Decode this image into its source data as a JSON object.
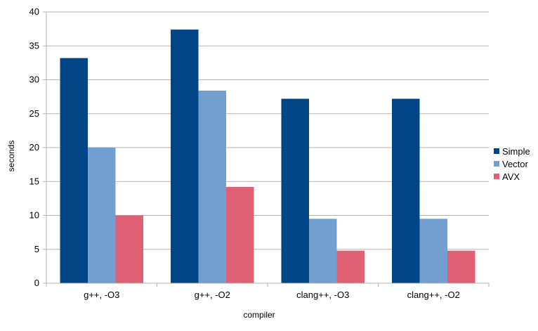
{
  "chart_data": {
    "type": "bar",
    "categories": [
      "g++, -O3",
      "g++, -O2",
      "clang++, -O3",
      "clang++, -O2"
    ],
    "series": [
      {
        "name": "Simple",
        "color": "#004586",
        "values": [
          33.2,
          37.4,
          27.2,
          27.2
        ]
      },
      {
        "name": "Vector",
        "color": "#729fcf",
        "values": [
          20.0,
          28.4,
          9.5,
          9.5
        ]
      },
      {
        "name": "AVX",
        "color": "#e06073",
        "values": [
          10.0,
          14.2,
          4.8,
          4.8
        ]
      }
    ],
    "yticks": [
      "0",
      "5",
      "10",
      "15",
      "20",
      "25",
      "30",
      "35",
      "40"
    ],
    "xlabel": "compiler",
    "ylabel": "seconds",
    "ylim": [
      0,
      40
    ],
    "grid": true,
    "legend_position": "right"
  }
}
